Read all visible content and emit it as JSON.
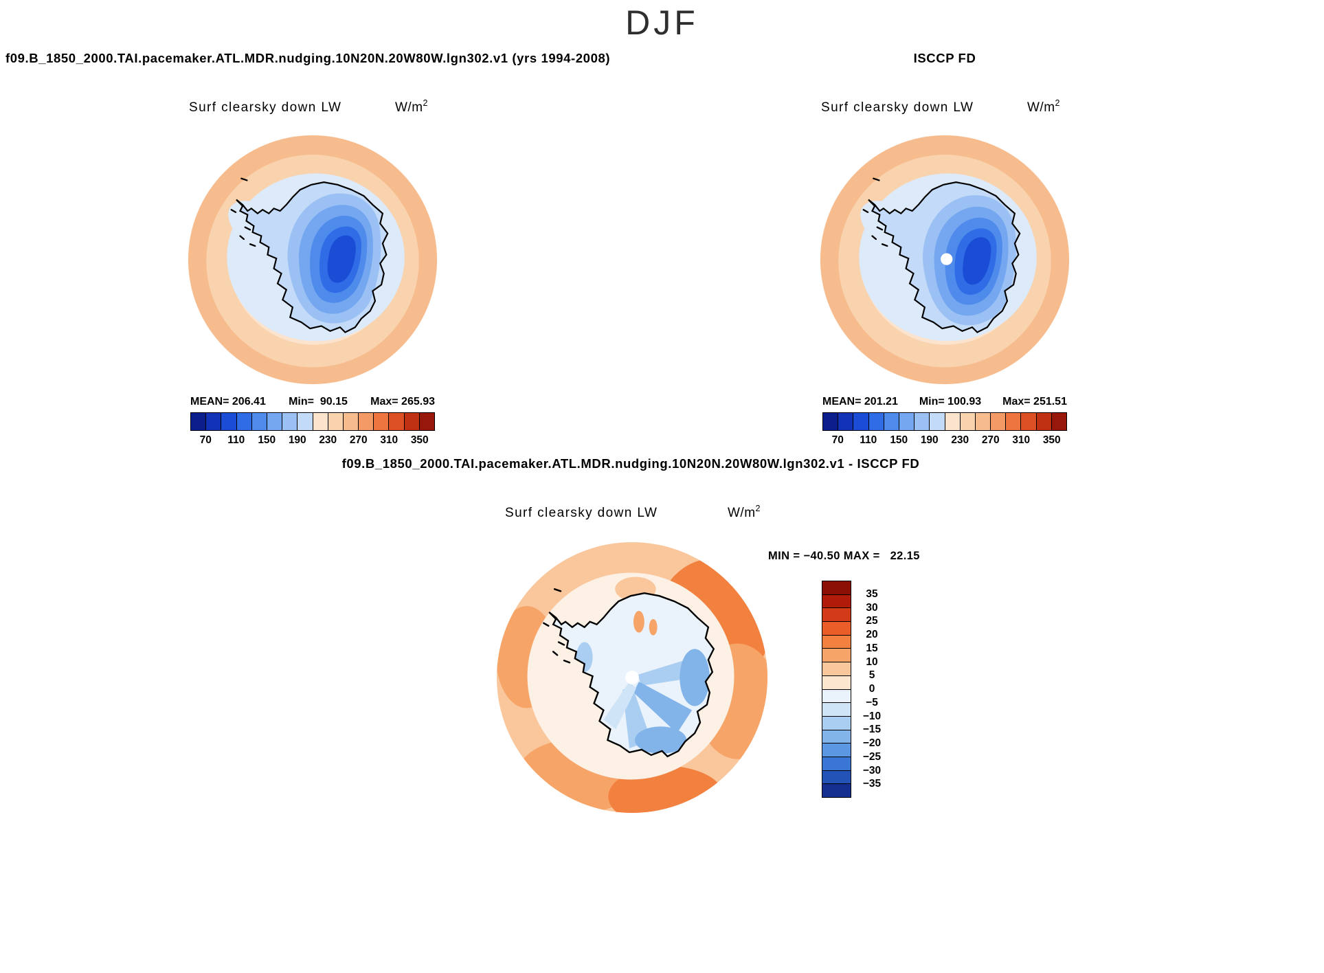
{
  "season_title": "DJF",
  "panels": {
    "model": {
      "header": "f09.B_1850_2000.TAI.pacemaker.ATL.MDR.nudging.10N20N.20W80W.lgn302.v1 (yrs 1994-2008)",
      "field_label": "Surf clearsky down LW",
      "stats": {
        "mean": "MEAN= 206.41",
        "min": "Min=  90.15",
        "max": "Max= 265.93"
      }
    },
    "obs": {
      "header": "ISCCP FD",
      "field_label": "Surf clearsky down LW",
      "stats": {
        "mean": "MEAN= 201.21",
        "min": "Min= 100.93",
        "max": "Max= 251.51"
      }
    },
    "diff": {
      "header": "f09.B_1850_2000.TAI.pacemaker.ATL.MDR.nudging.10N20N.20W80W.lgn302.v1 - ISCCP FD",
      "field_label": "Surf clearsky down LW",
      "minmax": "MIN = −40.50 MAX =   22.15"
    }
  },
  "units": {
    "base": "W/m",
    "exp": "2"
  },
  "colorbar_abs": {
    "ticks": [
      "70",
      "110",
      "150",
      "190",
      "230",
      "270",
      "310",
      "350"
    ],
    "colors": [
      "#0b1e8c",
      "#1233b8",
      "#1b4cd6",
      "#2f6ce6",
      "#4f8beb",
      "#74a7f0",
      "#9bc1f4",
      "#c3daf8",
      "#fbe3cd",
      "#f9d2ae",
      "#f7bc8e",
      "#f49a66",
      "#ee7440",
      "#dd4f24",
      "#bf3112",
      "#97180a"
    ]
  },
  "colorbar_diff": {
    "ticks": [
      "35",
      "30",
      "25",
      "20",
      "15",
      "10",
      "5",
      "0",
      "−5",
      "−10",
      "−15",
      "−20",
      "−25",
      "−30",
      "−35"
    ],
    "colors": [
      "#8c0f06",
      "#b01b0a",
      "#d23a18",
      "#ea5c28",
      "#f2803f",
      "#f7a468",
      "#fac79c",
      "#fde6cf",
      "#eaf3fb",
      "#cfe4f7",
      "#aacef1",
      "#82b4ea",
      "#5b97e2",
      "#3a76d3",
      "#2353b6",
      "#142f8f"
    ]
  },
  "map_colors": {
    "white": "#ffffff",
    "halo": "#ddeaf9",
    "palebg": "#fdf0e4"
  },
  "chart_data": [
    {
      "type": "heatmap",
      "subtype": "south_polar_stereographic_contour_map",
      "season": "DJF",
      "title": "f09.B_1850_2000.TAI.pacemaker.ATL.MDR.nudging.10N20N.20W80W.lgn302.v1 (yrs 1994-2008)",
      "variable": "Surf clearsky down LW",
      "units": "W/m^2",
      "stats": {
        "mean": 206.41,
        "min": 90.15,
        "max": 265.93
      },
      "colorbar_tick_values": [
        70,
        110,
        150,
        190,
        230,
        270,
        310,
        350
      ],
      "legend_position": "below"
    },
    {
      "type": "heatmap",
      "subtype": "south_polar_stereographic_contour_map",
      "season": "DJF",
      "title": "ISCCP FD",
      "variable": "Surf clearsky down LW",
      "units": "W/m^2",
      "stats": {
        "mean": 201.21,
        "min": 100.93,
        "max": 251.51
      },
      "colorbar_tick_values": [
        70,
        110,
        150,
        190,
        230,
        270,
        310,
        350
      ],
      "legend_position": "below"
    },
    {
      "type": "heatmap",
      "subtype": "south_polar_stereographic_contour_map",
      "season": "DJF",
      "title": "f09.B_1850_2000.TAI.pacemaker.ATL.MDR.nudging.10N20N.20W80W.lgn302.v1 - ISCCP FD",
      "variable": "Surf clearsky down LW",
      "units": "W/m^2",
      "stats": {
        "min": -40.5,
        "max": 22.15
      },
      "colorbar_tick_values": [
        35,
        30,
        25,
        20,
        15,
        10,
        5,
        0,
        -5,
        -10,
        -15,
        -20,
        -25,
        -30,
        -35
      ],
      "legend_position": "right"
    }
  ]
}
